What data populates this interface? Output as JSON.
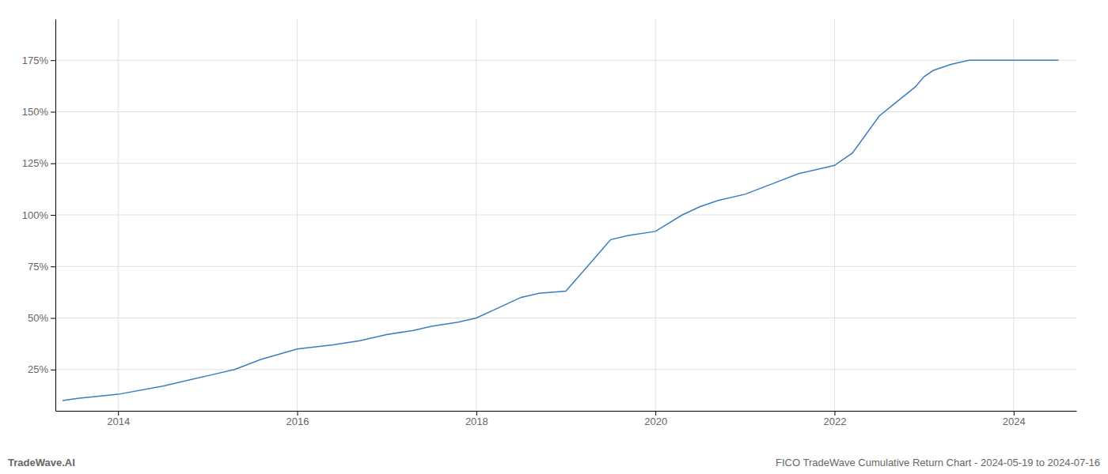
{
  "chart_data": {
    "type": "line",
    "x": [
      2013.38,
      2013.55,
      2014.0,
      2014.5,
      2015.0,
      2015.3,
      2015.6,
      2016.0,
      2016.4,
      2016.7,
      2017.0,
      2017.3,
      2017.5,
      2017.8,
      2018.0,
      2018.2,
      2018.5,
      2018.7,
      2019.0,
      2019.3,
      2019.5,
      2019.7,
      2020.0,
      2020.3,
      2020.5,
      2020.7,
      2021.0,
      2021.3,
      2021.6,
      2021.9,
      2022.0,
      2022.2,
      2022.5,
      2022.7,
      2022.9,
      2023.0,
      2023.1,
      2023.3,
      2023.5,
      2024.0,
      2024.5
    ],
    "values": [
      10,
      11,
      13,
      17,
      22,
      25,
      30,
      35,
      37,
      39,
      42,
      44,
      46,
      48,
      50,
      54,
      60,
      62,
      63,
      78,
      88,
      90,
      92,
      100,
      104,
      107,
      110,
      115,
      120,
      123,
      124,
      130,
      148,
      155,
      162,
      167,
      170,
      173,
      175,
      175,
      175
    ],
    "color": "#3a7ebf",
    "xlim": [
      2013.3,
      2024.7
    ],
    "ylim": [
      5,
      195
    ],
    "xticks": [
      2014,
      2016,
      2018,
      2020,
      2022,
      2024
    ],
    "yticks": [
      {
        "value": 25,
        "label": "25%"
      },
      {
        "value": 50,
        "label": "50%"
      },
      {
        "value": 75,
        "label": "75%"
      },
      {
        "value": 100,
        "label": "100%"
      },
      {
        "value": 125,
        "label": "125%"
      },
      {
        "value": 150,
        "label": "150%"
      },
      {
        "value": 175,
        "label": "175%"
      }
    ],
    "grid": true,
    "annotations": [
      "TradeWave.AI",
      "FICO TradeWave Cumulative Return Chart - 2024-05-19 to 2024-07-16"
    ]
  }
}
